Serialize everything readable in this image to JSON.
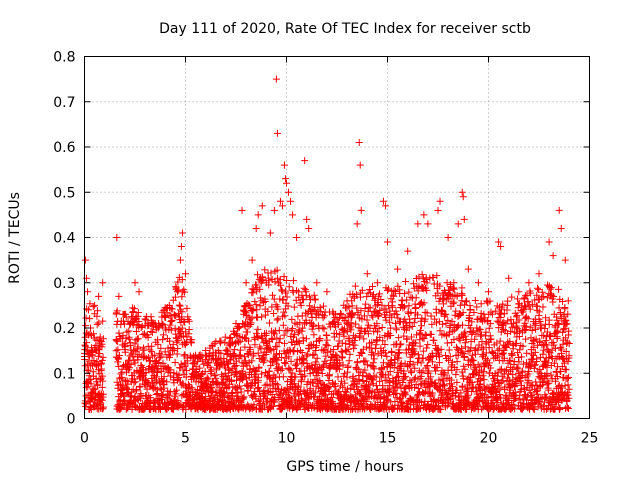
{
  "chart_data": {
    "type": "scatter",
    "title": "Day 111 of 2020, Rate Of TEC Index for receiver sctb",
    "xlabel": "GPS time / hours",
    "ylabel": "ROTI / TECUs",
    "xlim": [
      0,
      25
    ],
    "ylim": [
      0,
      0.8
    ],
    "xticks": [
      0,
      5,
      10,
      15,
      20,
      25
    ],
    "xtick_labels": [
      "0",
      "5",
      "10",
      "15",
      "20",
      "25"
    ],
    "yticks": [
      0,
      0.1,
      0.2,
      0.3,
      0.4,
      0.5,
      0.6,
      0.7,
      0.8
    ],
    "ytick_labels": [
      "0",
      "0.1",
      "0.2",
      "0.3",
      "0.4",
      "0.5",
      "0.6",
      "0.7",
      "0.8"
    ],
    "grid": true,
    "marker": "+",
    "color": "#ff0000",
    "series": [
      {
        "name": "ROTI",
        "points": [
          [
            0.05,
            0.35
          ],
          [
            0.1,
            0.31
          ],
          [
            0.15,
            0.28
          ],
          [
            0.2,
            0.24
          ],
          [
            0.3,
            0.2
          ],
          [
            0.5,
            0.25
          ],
          [
            0.7,
            0.27
          ],
          [
            0.9,
            0.3
          ],
          [
            1.6,
            0.4
          ],
          [
            1.7,
            0.27
          ],
          [
            2.5,
            0.3
          ],
          [
            2.7,
            0.28
          ],
          [
            3.0,
            0.22
          ],
          [
            3.5,
            0.21
          ],
          [
            4.0,
            0.2
          ],
          [
            4.2,
            0.25
          ],
          [
            4.6,
            0.28
          ],
          [
            4.75,
            0.35
          ],
          [
            4.8,
            0.38
          ],
          [
            4.85,
            0.41
          ],
          [
            5.0,
            0.32
          ],
          [
            5.5,
            0.14
          ],
          [
            6.0,
            0.13
          ],
          [
            6.5,
            0.17
          ],
          [
            7.0,
            0.15
          ],
          [
            7.5,
            0.21
          ],
          [
            7.8,
            0.46
          ],
          [
            8.0,
            0.3
          ],
          [
            8.3,
            0.35
          ],
          [
            8.5,
            0.42
          ],
          [
            8.6,
            0.45
          ],
          [
            8.8,
            0.47
          ],
          [
            9.0,
            0.3
          ],
          [
            9.2,
            0.41
          ],
          [
            9.4,
            0.46
          ],
          [
            9.5,
            0.75
          ],
          [
            9.55,
            0.63
          ],
          [
            9.7,
            0.48
          ],
          [
            9.8,
            0.47
          ],
          [
            9.9,
            0.56
          ],
          [
            9.95,
            0.53
          ],
          [
            10.0,
            0.52
          ],
          [
            10.1,
            0.5
          ],
          [
            10.2,
            0.48
          ],
          [
            10.3,
            0.45
          ],
          [
            10.5,
            0.4
          ],
          [
            10.9,
            0.57
          ],
          [
            11.0,
            0.44
          ],
          [
            11.1,
            0.42
          ],
          [
            11.5,
            0.3
          ],
          [
            12.0,
            0.28
          ],
          [
            12.5,
            0.22
          ],
          [
            13.0,
            0.26
          ],
          [
            13.5,
            0.43
          ],
          [
            13.6,
            0.61
          ],
          [
            13.65,
            0.56
          ],
          [
            13.7,
            0.46
          ],
          [
            14.0,
            0.32
          ],
          [
            14.5,
            0.3
          ],
          [
            14.8,
            0.48
          ],
          [
            14.9,
            0.47
          ],
          [
            15.0,
            0.39
          ],
          [
            15.5,
            0.33
          ],
          [
            16.0,
            0.37
          ],
          [
            16.5,
            0.43
          ],
          [
            16.8,
            0.45
          ],
          [
            17.0,
            0.43
          ],
          [
            17.5,
            0.46
          ],
          [
            17.6,
            0.48
          ],
          [
            18.0,
            0.4
          ],
          [
            18.5,
            0.43
          ],
          [
            18.7,
            0.5
          ],
          [
            18.75,
            0.49
          ],
          [
            18.8,
            0.44
          ],
          [
            19.0,
            0.33
          ],
          [
            19.5,
            0.3
          ],
          [
            20.0,
            0.28
          ],
          [
            20.5,
            0.39
          ],
          [
            20.6,
            0.38
          ],
          [
            21.0,
            0.31
          ],
          [
            21.5,
            0.28
          ],
          [
            22.0,
            0.3
          ],
          [
            22.5,
            0.32
          ],
          [
            23.0,
            0.39
          ],
          [
            23.2,
            0.36
          ],
          [
            23.5,
            0.46
          ],
          [
            23.6,
            0.42
          ],
          [
            23.8,
            0.35
          ],
          [
            23.95,
            0.26
          ]
        ],
        "band_envelope": [
          [
            0.0,
            0.23
          ],
          [
            0.5,
            0.24
          ],
          [
            0.95,
            0.2
          ],
          [
            1.6,
            0.22
          ],
          [
            2.5,
            0.23
          ],
          [
            3.5,
            0.2
          ],
          [
            4.8,
            0.3
          ],
          [
            5.5,
            0.12
          ],
          [
            6.5,
            0.15
          ],
          [
            7.5,
            0.18
          ],
          [
            8.5,
            0.3
          ],
          [
            9.5,
            0.32
          ],
          [
            10.5,
            0.28
          ],
          [
            11.5,
            0.25
          ],
          [
            12.5,
            0.21
          ],
          [
            13.5,
            0.28
          ],
          [
            14.5,
            0.27
          ],
          [
            15.5,
            0.28
          ],
          [
            16.5,
            0.3
          ],
          [
            17.5,
            0.3
          ],
          [
            18.5,
            0.28
          ],
          [
            19.5,
            0.24
          ],
          [
            20.5,
            0.25
          ],
          [
            21.5,
            0.25
          ],
          [
            22.5,
            0.28
          ],
          [
            23.5,
            0.27
          ],
          [
            24.0,
            0.2
          ]
        ],
        "gaps": [
          [
            0.95,
            1.55
          ]
        ]
      }
    ]
  }
}
